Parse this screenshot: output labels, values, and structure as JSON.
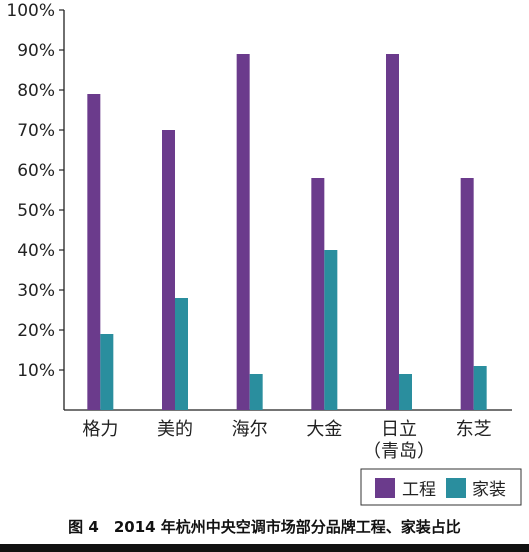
{
  "chart_data": {
    "type": "bar",
    "categories": [
      "格力",
      "美的",
      "海尔",
      "大金",
      "日立\n（青岛）",
      "东芝"
    ],
    "series": [
      {
        "name": "工程",
        "values": [
          79,
          70,
          89,
          58,
          89,
          58
        ],
        "color": "#6b3b8c"
      },
      {
        "name": "家装",
        "values": [
          19,
          28,
          9,
          40,
          9,
          11
        ],
        "color": "#2a8e9e"
      }
    ],
    "yticks": [
      "10%",
      "20%",
      "30%",
      "40%",
      "50%",
      "60%",
      "70%",
      "80%",
      "90%",
      "100%"
    ],
    "ylim": [
      0,
      100
    ],
    "grid": false,
    "legend": "bottom-right",
    "caption": "图 4　2014 年杭州中央空调市场部分品牌工程、家装占比"
  }
}
